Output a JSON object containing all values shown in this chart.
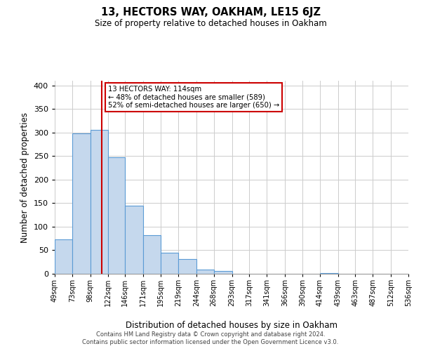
{
  "title": "13, HECTORS WAY, OAKHAM, LE15 6JZ",
  "subtitle": "Size of property relative to detached houses in Oakham",
  "xlabel": "Distribution of detached houses by size in Oakham",
  "ylabel": "Number of detached properties",
  "bin_edges": [
    49,
    73,
    98,
    122,
    146,
    171,
    195,
    219,
    244,
    268,
    293,
    317,
    341,
    366,
    390,
    414,
    439,
    463,
    487,
    512,
    536
  ],
  "bin_labels": [
    "49sqm",
    "73sqm",
    "98sqm",
    "122sqm",
    "146sqm",
    "171sqm",
    "195sqm",
    "219sqm",
    "244sqm",
    "268sqm",
    "293sqm",
    "317sqm",
    "341sqm",
    "366sqm",
    "390sqm",
    "414sqm",
    "439sqm",
    "463sqm",
    "487sqm",
    "512sqm",
    "536sqm"
  ],
  "bar_heights": [
    73,
    298,
    305,
    248,
    144,
    82,
    44,
    32,
    9,
    6,
    0,
    0,
    0,
    0,
    0,
    2,
    0,
    0,
    0,
    0
  ],
  "bar_color": "#c5d8ed",
  "bar_edge_color": "#5b9bd5",
  "property_line_x": 114,
  "property_line_color": "#cc0000",
  "annotation_title": "13 HECTORS WAY: 114sqm",
  "annotation_line1": "← 48% of detached houses are smaller (589)",
  "annotation_line2": "52% of semi-detached houses are larger (650) →",
  "annotation_box_color": "#cc0000",
  "ylim": [
    0,
    410
  ],
  "yticks": [
    0,
    50,
    100,
    150,
    200,
    250,
    300,
    350,
    400
  ],
  "footnote1": "Contains HM Land Registry data © Crown copyright and database right 2024.",
  "footnote2": "Contains public sector information licensed under the Open Government Licence v3.0.",
  "bg_color": "#ffffff",
  "grid_color": "#cccccc"
}
